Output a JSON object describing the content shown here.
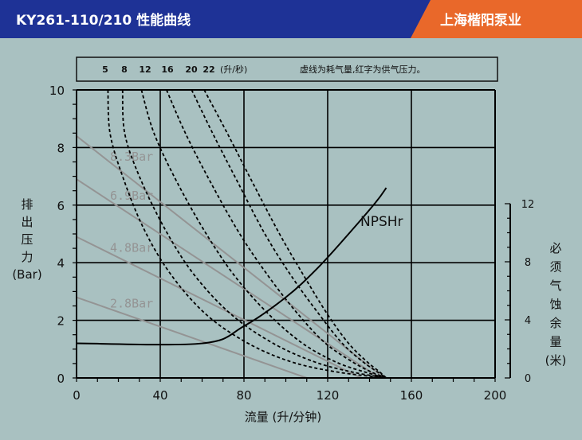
{
  "header": {
    "title": "KY261-110/210 性能曲线",
    "brand": "上海楷阳泵业",
    "bg_color": "#1e3296",
    "brand_color": "#e9682a"
  },
  "legend_box": {
    "air_flows": [
      "5",
      "8",
      "12",
      "16",
      "20",
      "22"
    ],
    "air_unit": "(升/秒)",
    "note": "虚线为耗气量,红字为供气压力。"
  },
  "chart_data": {
    "type": "line",
    "x": {
      "label": "流量 (升/分钟)",
      "range": [
        0,
        200
      ],
      "ticks": [
        "0",
        "40",
        "80",
        "120",
        "160",
        "200"
      ]
    },
    "y_left": {
      "label_lines": [
        "排",
        "出",
        "压",
        "力",
        "(Bar)"
      ],
      "range": [
        0,
        10
      ],
      "ticks": [
        "0",
        "2",
        "4",
        "6",
        "8",
        "10"
      ]
    },
    "y_right": {
      "label_lines": [
        "必",
        "须",
        "气",
        "蚀",
        "余",
        "量",
        "(米)"
      ],
      "range": [
        0,
        12
      ],
      "ticks": [
        "0",
        "4",
        "8",
        "12"
      ]
    },
    "grid": true,
    "pressure_curves": [
      {
        "label": "8.3Bar",
        "points": [
          [
            0,
            8.4
          ],
          [
            147,
            0
          ]
        ]
      },
      {
        "label": "6.9Bar",
        "points": [
          [
            0,
            6.9
          ],
          [
            145,
            0
          ]
        ]
      },
      {
        "label": "4.8Bar",
        "points": [
          [
            0,
            4.9
          ],
          [
            136,
            0
          ]
        ]
      },
      {
        "label": "2.8Bar",
        "points": [
          [
            0,
            2.8
          ],
          [
            110,
            0
          ]
        ]
      }
    ],
    "air_curves": [
      {
        "name": "5",
        "points": [
          [
            15,
            10
          ],
          [
            16,
            8.5
          ],
          [
            22,
            7
          ],
          [
            32,
            5.2
          ],
          [
            45,
            3.6
          ],
          [
            62,
            2.2
          ],
          [
            82,
            1.2
          ],
          [
            103,
            0.55
          ],
          [
            125,
            0.2
          ],
          [
            148,
            0
          ]
        ]
      },
      {
        "name": "8",
        "points": [
          [
            22,
            10
          ],
          [
            23,
            8.5
          ],
          [
            30,
            7
          ],
          [
            42,
            5.2
          ],
          [
            56,
            3.6
          ],
          [
            74,
            2.2
          ],
          [
            94,
            1.2
          ],
          [
            114,
            0.55
          ],
          [
            132,
            0.2
          ],
          [
            148,
            0
          ]
        ]
      },
      {
        "name": "12",
        "points": [
          [
            31,
            10
          ],
          [
            37,
            8.5
          ],
          [
            48,
            6.8
          ],
          [
            62,
            5
          ],
          [
            76,
            3.5
          ],
          [
            92,
            2.2
          ],
          [
            108,
            1.2
          ],
          [
            124,
            0.55
          ],
          [
            138,
            0.2
          ],
          [
            148,
            0
          ]
        ]
      },
      {
        "name": "16",
        "points": [
          [
            43,
            10
          ],
          [
            52,
            8.5
          ],
          [
            64,
            6.8
          ],
          [
            78,
            5
          ],
          [
            92,
            3.5
          ],
          [
            106,
            2.2
          ],
          [
            119,
            1.2
          ],
          [
            132,
            0.55
          ],
          [
            141,
            0.2
          ],
          [
            148,
            0
          ]
        ]
      },
      {
        "name": "20",
        "points": [
          [
            55,
            10
          ],
          [
            65,
            8.5
          ],
          [
            77,
            6.8
          ],
          [
            90,
            5
          ],
          [
            103,
            3.5
          ],
          [
            116,
            2.2
          ],
          [
            127,
            1.2
          ],
          [
            137,
            0.55
          ],
          [
            144,
            0.2
          ],
          [
            148,
            0
          ]
        ]
      },
      {
        "name": "22",
        "points": [
          [
            61,
            10
          ],
          [
            72,
            8.5
          ],
          [
            84,
            6.8
          ],
          [
            97,
            5
          ],
          [
            109,
            3.5
          ],
          [
            120,
            2.2
          ],
          [
            130,
            1.2
          ],
          [
            139,
            0.55
          ],
          [
            145,
            0.2
          ],
          [
            148,
            0
          ]
        ]
      }
    ],
    "npsh": {
      "label": "NPSHr",
      "points": [
        [
          0,
          1.2
        ],
        [
          60,
          1.2
        ],
        [
          80,
          1.8
        ],
        [
          100,
          2.8
        ],
        [
          115,
          3.8
        ],
        [
          130,
          5.0
        ],
        [
          143,
          6.1
        ],
        [
          148,
          6.6
        ]
      ]
    }
  }
}
